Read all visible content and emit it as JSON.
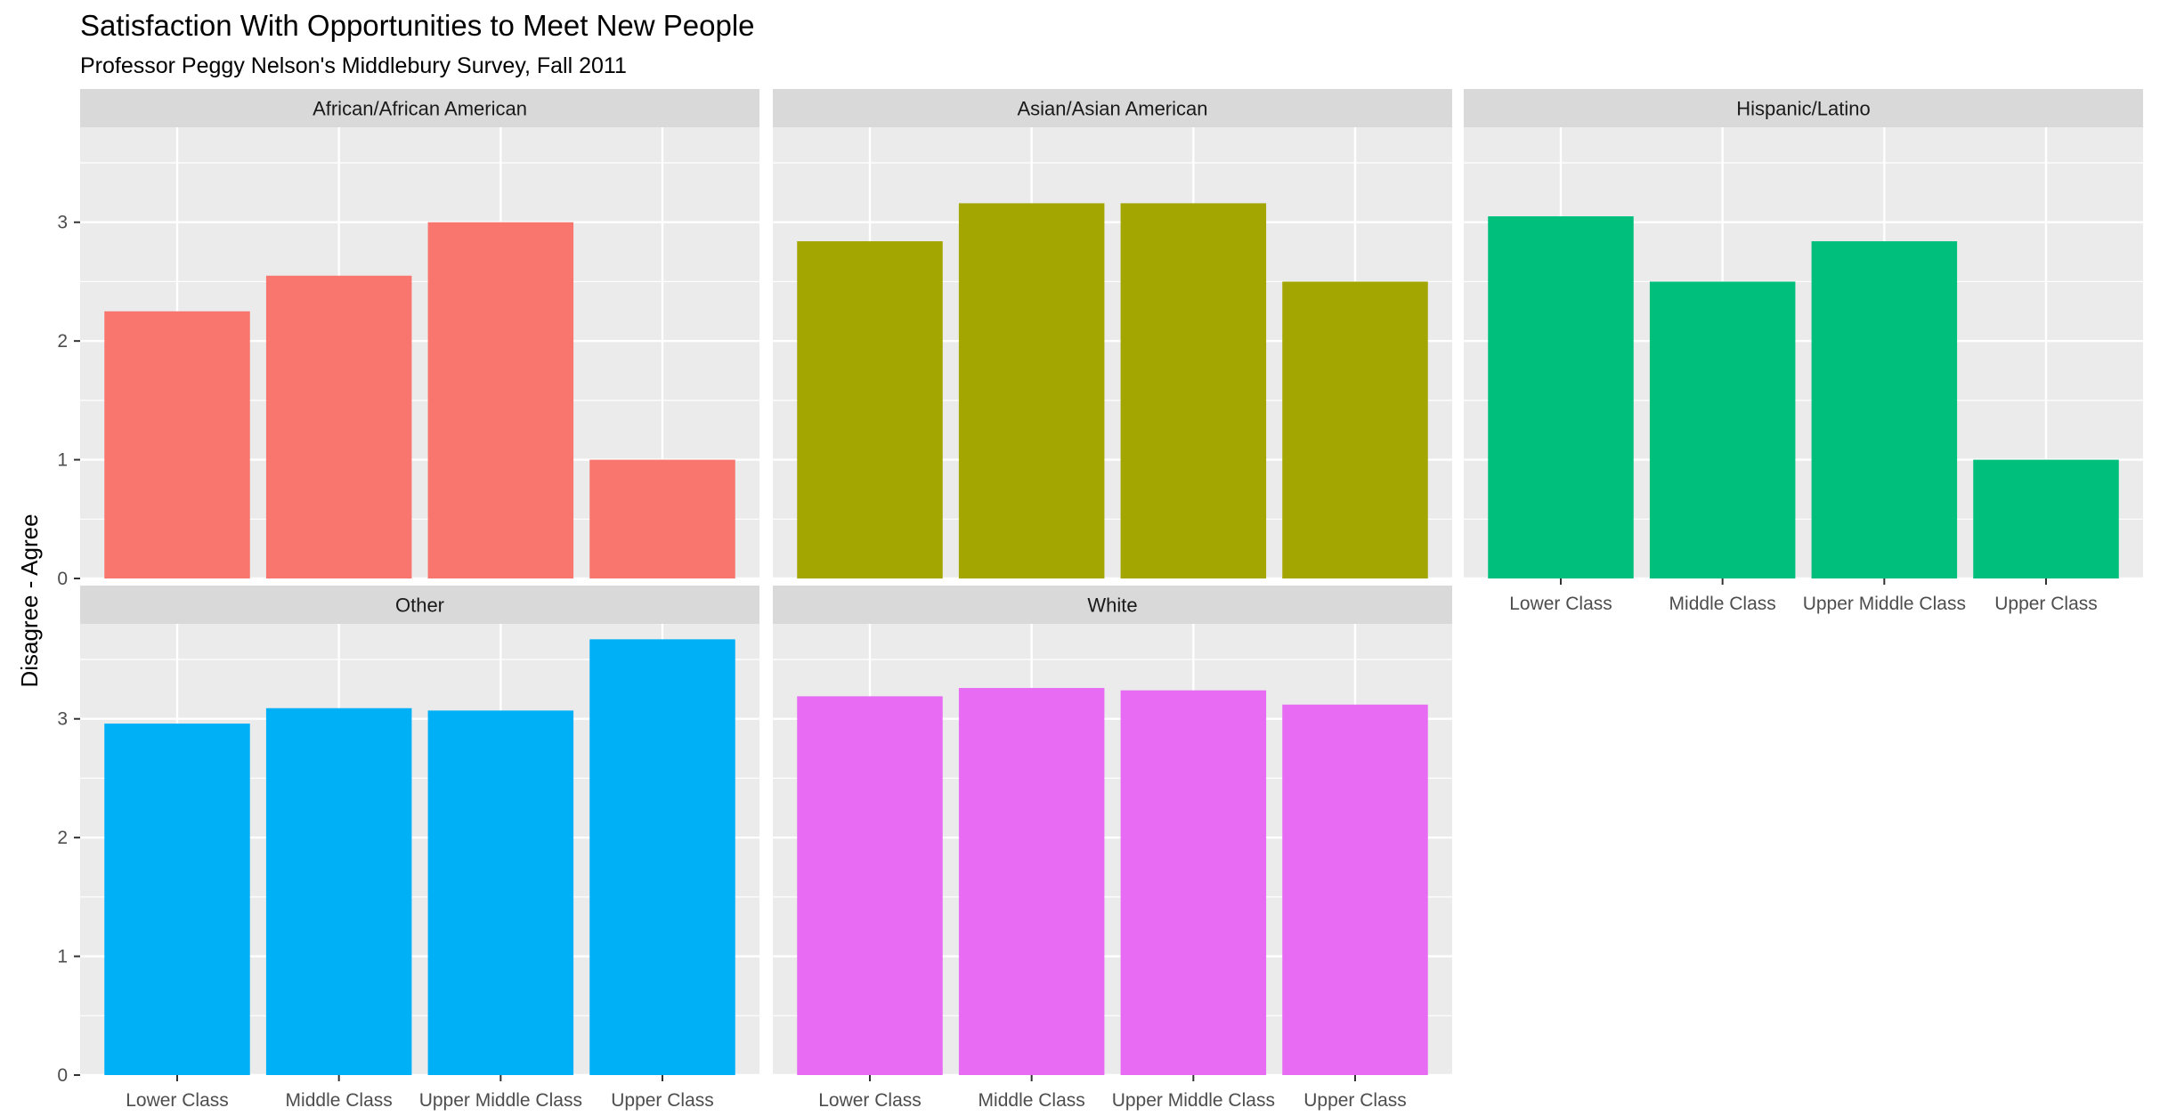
{
  "chart_data": {
    "type": "bar",
    "title": "Satisfaction With Opportunities to Meet New People",
    "subtitle": "Professor Peggy Nelson's Middlebury Survey, Fall 2011",
    "xlabel": "",
    "ylabel": "Disagree - Agree",
    "ylim": [
      0,
      3.8
    ],
    "yticks": [
      0,
      1,
      2,
      3
    ],
    "grid": true,
    "legend": "none",
    "categories": [
      "Lower Class",
      "Middle Class",
      "Upper Middle Class",
      "Upper Class"
    ],
    "panels": [
      {
        "name": "African/African American",
        "color": "#F8766D",
        "values": [
          2.25,
          2.55,
          3.0,
          1.0
        ]
      },
      {
        "name": "Asian/Asian American",
        "color": "#A3A500",
        "values": [
          2.84,
          3.16,
          3.16,
          2.5
        ]
      },
      {
        "name": "Hispanic/Latino",
        "color": "#00BF7D",
        "values": [
          3.05,
          2.5,
          2.84,
          1.0
        ]
      },
      {
        "name": "Other",
        "color": "#00B0F6",
        "values": [
          2.96,
          3.09,
          3.07,
          3.67
        ]
      },
      {
        "name": "White",
        "color": "#E76BF3",
        "values": [
          3.19,
          3.26,
          3.24,
          3.12
        ]
      }
    ]
  },
  "theme": {
    "panel_background": "#EBEBEB",
    "strip_background": "#D9D9D9",
    "grid_color": "#FFFFFF",
    "tick_text_color": "#4D4D4D",
    "strip_text_color": "#1A1A1A",
    "text_color": "#000000"
  }
}
